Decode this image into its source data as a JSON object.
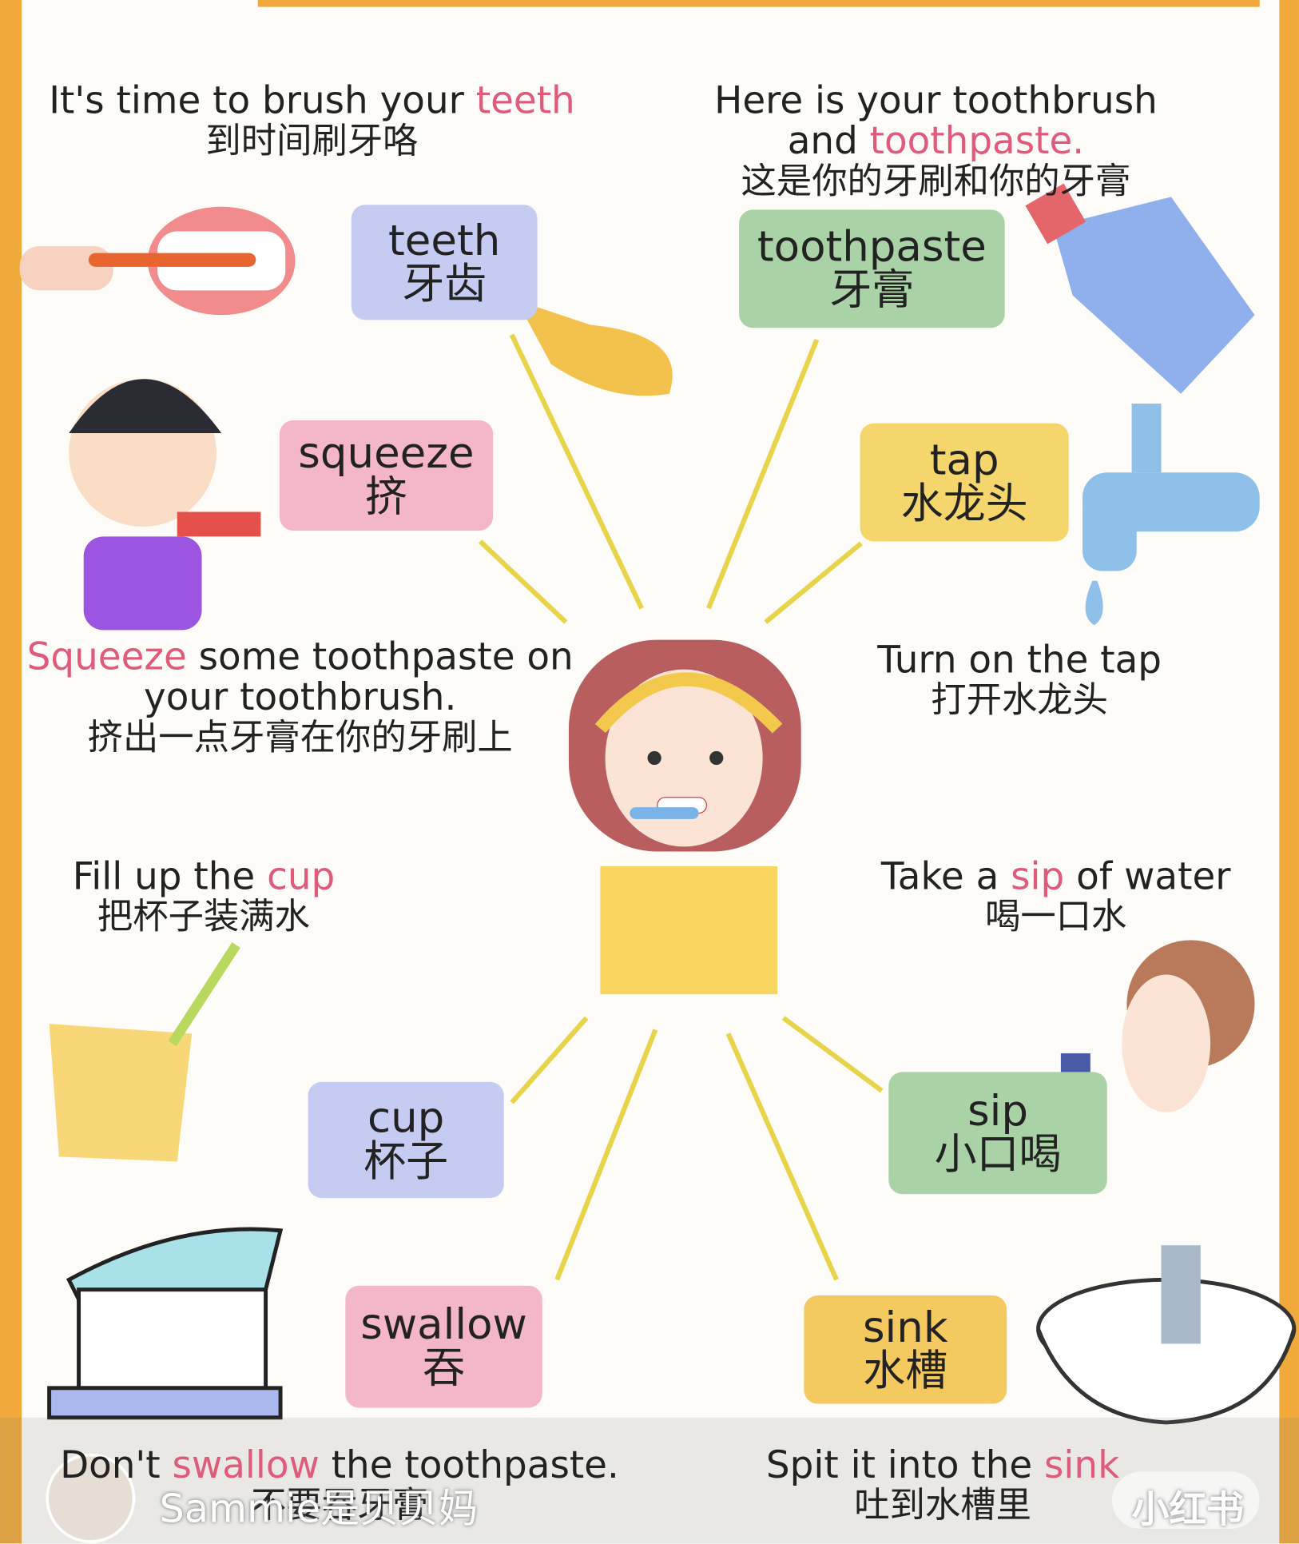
{
  "sentences": [
    {
      "lines": [
        [
          {
            "text": "It's time to brush your "
          },
          {
            "text": "teeth",
            "highlight": true
          }
        ]
      ],
      "zh": "到时间刷牙咯"
    },
    {
      "lines": [
        [
          {
            "text": "Here is your toothbrush"
          }
        ],
        [
          {
            "text": "and "
          },
          {
            "text": "toothpaste.",
            "highlight": true
          }
        ]
      ],
      "zh": "这是你的牙刷和你的牙膏"
    },
    {
      "lines": [
        [
          {
            "text": "Squeeze",
            "highlight": true
          },
          {
            "text": " some toothpaste on"
          }
        ],
        [
          {
            "text": "your toothbrush."
          }
        ]
      ],
      "zh": "挤出一点牙膏在你的牙刷上"
    },
    {
      "lines": [
        [
          {
            "text": "Turn on the tap"
          }
        ]
      ],
      "zh": "打开水龙头"
    },
    {
      "lines": [
        [
          {
            "text": "Fill up the "
          },
          {
            "text": "cup",
            "highlight": true
          }
        ]
      ],
      "zh": "把杯子装满水"
    },
    {
      "lines": [
        [
          {
            "text": "Take a "
          },
          {
            "text": "sip",
            "highlight": true
          },
          {
            "text": " of water"
          }
        ]
      ],
      "zh": "喝一口水"
    },
    {
      "lines": [
        [
          {
            "text": "Don't "
          },
          {
            "text": "swallow",
            "highlight": true
          },
          {
            "text": " the toothpaste."
          }
        ]
      ],
      "zh": "不要吞牙膏"
    },
    {
      "lines": [
        [
          {
            "text": "Spit it into the "
          },
          {
            "text": "sink",
            "highlight": true
          }
        ]
      ],
      "zh": "吐到水槽里"
    }
  ],
  "cards": [
    {
      "en": "teeth",
      "zh": "牙齿",
      "color": "#c6cbf2"
    },
    {
      "en": "toothpaste",
      "zh": "牙膏",
      "color": "#a9d3a6"
    },
    {
      "en": "squeeze",
      "zh": "挤",
      "color": "#f4b7c7"
    },
    {
      "en": "tap",
      "zh": "水龙头",
      "color": "#f4d66c"
    },
    {
      "en": "cup",
      "zh": "杯子",
      "color": "#c6cbf2"
    },
    {
      "en": "sip",
      "zh": "小口喝",
      "color": "#a9d3a6"
    },
    {
      "en": "swallow",
      "zh": "吞",
      "color": "#f4b7c7"
    },
    {
      "en": "sink",
      "zh": "水槽",
      "color": "#f3c960"
    }
  ],
  "highlight_color": "#e05a7a",
  "watermark": {
    "author": "Sammie是贝贝妈",
    "logo": "小红书"
  }
}
